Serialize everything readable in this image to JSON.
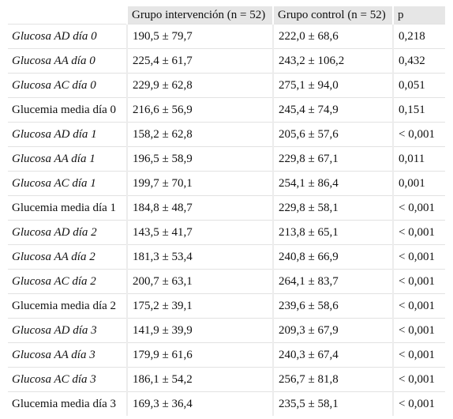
{
  "table": {
    "header": [
      "",
      "Grupo intervención (n = 52)",
      "Grupo control (n = 52)",
      "p"
    ],
    "rows": [
      [
        "Glucosa AD día 0",
        "190,5 ± 79,7",
        "222,0 ± 68,6",
        "0,218"
      ],
      [
        "Glucosa AA día 0",
        "225,4 ± 61,7",
        "243,2 ± 106,2",
        "0,432"
      ],
      [
        "Glucosa AC día 0",
        "229,9 ± 62,8",
        "275,1 ± 94,0",
        "0,051"
      ],
      [
        "Glucemia media día 0",
        "216,6 ± 56,9",
        "245,4 ± 74,9",
        "0,151"
      ],
      [
        "Glucosa AD día 1",
        "158,2 ± 62,8",
        "205,6 ± 57,6",
        "< 0,001"
      ],
      [
        "Glucosa AA día 1",
        "196,5 ± 58,9",
        "229,8 ± 67,1",
        "0,011"
      ],
      [
        "Glucosa AC día 1",
        "199,7 ± 70,1",
        "254,1 ± 86,4",
        "0,001"
      ],
      [
        "Glucemia media día 1",
        "184,8 ± 48,7",
        "229,8 ± 58,1",
        "< 0,001"
      ],
      [
        "Glucosa AD día 2",
        "143,5 ± 41,7",
        "213,8 ± 65,1",
        "< 0,001"
      ],
      [
        "Glucosa AA día 2",
        "181,3 ± 53,4",
        "240,8 ± 66,9",
        "< 0,001"
      ],
      [
        "Glucosa AC día 2",
        "200,7 ± 63,1",
        "264,1 ± 83,7",
        "< 0,001"
      ],
      [
        "Glucemia media día 2",
        "175,2 ± 39,1",
        "239,6 ± 58,6",
        "< 0,001"
      ],
      [
        "Glucosa AD día 3",
        "141,9 ± 39,9",
        "209,3 ± 67,9",
        "< 0,001"
      ],
      [
        "Glucosa AA día 3",
        "179,9 ± 61,6",
        "240,3 ± 67,4",
        "< 0,001"
      ],
      [
        "Glucosa AC día 3",
        "186,1 ± 54,2",
        "256,7 ± 81,8",
        "< 0,001"
      ],
      [
        "Glucemia media día 3",
        "169,3 ± 36,4",
        "235,5 ± 58,1",
        "< 0,001"
      ]
    ]
  }
}
